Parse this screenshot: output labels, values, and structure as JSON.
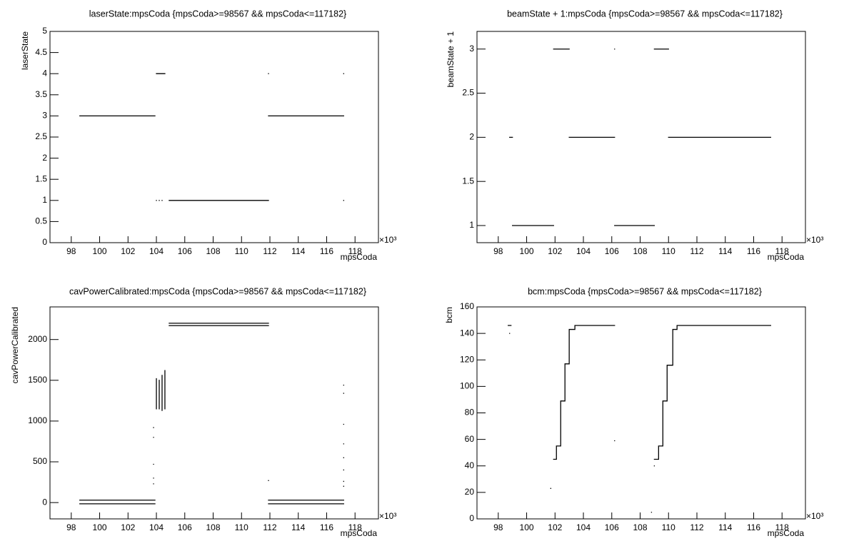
{
  "chart_data": [
    {
      "type": "line",
      "title": "laserState:mpsCoda {mpsCoda>=98567 && mpsCoda<=117182}",
      "x_label": "mpsCoda",
      "y_label": "laserState",
      "x_exponent": "×10³",
      "color": "#000000",
      "x": [
        98.6,
        103.9,
        null,
        104.0,
        104.6,
        null,
        104.9,
        111.9,
        null,
        111.9,
        117.2,
        null,
        104.0,
        null,
        104.2,
        null,
        104.4,
        null,
        111.9,
        null,
        117.2,
        null,
        117.2
      ],
      "values": [
        3,
        3,
        null,
        4,
        4,
        null,
        1,
        1,
        null,
        3,
        3,
        null,
        1,
        null,
        1,
        null,
        1,
        null,
        4,
        null,
        4,
        null,
        1
      ],
      "xlim": [
        96.5,
        119.65
      ],
      "ylim": [
        0,
        5
      ],
      "xticks": [
        98,
        100,
        102,
        104,
        106,
        108,
        110,
        112,
        114,
        116,
        118
      ],
      "yticks": [
        0,
        0.5,
        1,
        1.5,
        2,
        2.5,
        3,
        3.5,
        4,
        4.5,
        5
      ]
    },
    {
      "type": "line",
      "title": "beamState + 1:mpsCoda {mpsCoda>=98567 && mpsCoda<=117182}",
      "x_label": "mpsCoda",
      "y_label": "beamState + 1",
      "x_exponent": "×10³",
      "color": "#000000",
      "x": [
        98.8,
        99.0,
        null,
        99.0,
        101.9,
        null,
        101.9,
        103.0,
        null,
        103.0,
        106.2,
        null,
        106.2,
        null,
        106.2,
        109.0,
        null,
        109.0,
        110.0,
        null,
        110.0,
        117.2
      ],
      "values": [
        2,
        2,
        null,
        1,
        1,
        null,
        3,
        3,
        null,
        2,
        2,
        null,
        3,
        null,
        1,
        1,
        null,
        3,
        3,
        null,
        2,
        2
      ],
      "xlim": [
        96.5,
        119.65
      ],
      "ylim": [
        0.806,
        3.2
      ],
      "xticks": [
        98,
        100,
        102,
        104,
        106,
        108,
        110,
        112,
        114,
        116,
        118
      ],
      "yticks": [
        1,
        1.5,
        2,
        2.5,
        3
      ]
    },
    {
      "type": "line",
      "title": "cavPowerCalibrated:mpsCoda {mpsCoda>=98567 && mpsCoda<=117182}",
      "x_label": "mpsCoda",
      "y_label": "cavPowerCalibrated",
      "x_exponent": "×10³",
      "color": "#000000",
      "x": [
        98.6,
        103.9,
        null,
        98.6,
        103.9,
        null,
        104.9,
        111.9,
        null,
        104.9,
        111.9,
        null,
        111.9,
        117.2,
        null,
        111.9,
        117.2,
        null,
        104.0,
        104.0,
        null,
        104.2,
        104.2,
        null,
        104.4,
        104.4,
        null,
        104.6,
        104.6,
        null,
        103.8,
        null,
        103.8,
        null,
        103.8,
        null,
        103.8,
        null,
        103.8,
        null,
        111.9,
        null,
        117.2,
        null,
        117.2,
        null,
        117.2,
        null,
        117.2,
        null,
        117.2,
        null,
        117.2,
        null,
        117.2,
        null,
        117.2
      ],
      "values": [
        30,
        30,
        null,
        -15,
        -15,
        null,
        2200,
        2200,
        null,
        2170,
        2170,
        null,
        30,
        30,
        null,
        -15,
        -15,
        null,
        1150,
        1520,
        null,
        1150,
        1500,
        null,
        1130,
        1560,
        null,
        1150,
        1620,
        null,
        920,
        null,
        800,
        null,
        470,
        null,
        300,
        null,
        230,
        null,
        270,
        null,
        1440,
        null,
        1340,
        null,
        960,
        null,
        720,
        null,
        550,
        null,
        400,
        null,
        260,
        null,
        200
      ],
      "xlim": [
        96.5,
        119.65
      ],
      "ylim": [
        -200,
        2400
      ],
      "xticks": [
        98,
        100,
        102,
        104,
        106,
        108,
        110,
        112,
        114,
        116,
        118
      ],
      "yticks": [
        0,
        500,
        1000,
        1500,
        2000
      ]
    },
    {
      "type": "line",
      "title": "bcm:mpsCoda {mpsCoda>=98567 && mpsCoda<=117182}",
      "x_label": "mpsCoda",
      "y_label": "bcm",
      "x_exponent": "×10³",
      "color": "#000000",
      "x": [
        98.7,
        98.9,
        null,
        101.9,
        102.1,
        102.1,
        102.4,
        102.4,
        102.7,
        102.7,
        103.0,
        103.0,
        103.4,
        103.4,
        106.2,
        null,
        101.7,
        null,
        106.2,
        null,
        98.8,
        null,
        109.0,
        109.3,
        109.3,
        109.6,
        109.6,
        109.9,
        109.9,
        110.3,
        110.3,
        110.6,
        110.6,
        117.2,
        null,
        109.0,
        null,
        108.8
      ],
      "values": [
        146,
        146,
        null,
        45,
        45,
        55,
        55,
        89,
        89,
        117,
        117,
        143,
        143,
        146,
        146,
        null,
        23,
        null,
        59,
        null,
        140,
        null,
        45,
        45,
        55,
        55,
        89,
        89,
        116,
        116,
        143,
        143,
        146,
        146,
        null,
        40,
        null,
        5
      ],
      "xlim": [
        96.5,
        119.65
      ],
      "ylim": [
        0,
        160
      ],
      "xticks": [
        98,
        100,
        102,
        104,
        106,
        108,
        110,
        112,
        114,
        116,
        118
      ],
      "yticks": [
        0,
        20,
        40,
        60,
        80,
        100,
        120,
        140,
        160
      ]
    }
  ]
}
